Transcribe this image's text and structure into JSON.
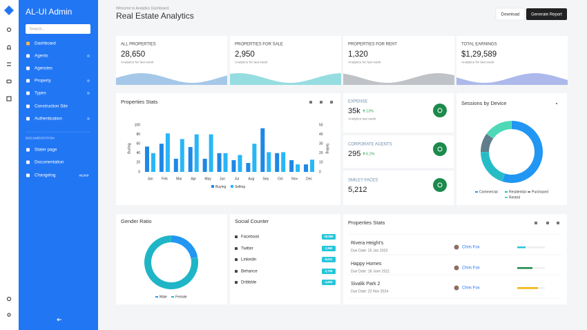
{
  "sidebar": {
    "brand": "AL-UI Admin",
    "search_placeholder": "Search...",
    "menu": [
      "Dashboard",
      "Agents",
      "Agencies",
      "Property",
      "Types",
      "Construction Site",
      "Authentication"
    ],
    "section": "DOCUMENTATION",
    "docs": [
      "Stater page",
      "Documentation",
      "Changelog"
    ],
    "version": "v1.0.0"
  },
  "header": {
    "welcome": "Welcome to Analytics Dashboard.",
    "title": "Real Estate Analytics",
    "buttons": [
      "Download",
      "Generate Report"
    ]
  },
  "stats": [
    {
      "label": "ALL PROPERTIES",
      "value": "28,650",
      "note": "Analytics for last week"
    },
    {
      "label": "PROPERTIES FOR SALE",
      "value": "2,950",
      "note": "Analytics for last week"
    },
    {
      "label": "PROPERTIES FOR RENT",
      "value": "1,320",
      "note": "Analytics for last week"
    },
    {
      "label": "TOTAL EARNINGS",
      "value": "$1,29,589",
      "note": "Analytics for last week"
    }
  ],
  "mini_cards": [
    {
      "label": "EXPENSE",
      "value": "35k",
      "change": "13%",
      "note": "Analytics last week"
    },
    {
      "label": "CORPORATE AGENTS",
      "value": "295",
      "change": "6.2%"
    },
    {
      "label": "SMILEY FACES",
      "value": "5,212"
    }
  ],
  "social": {
    "title": "Social Counter",
    "items": [
      {
        "name": "Facebook",
        "count": "29,585"
      },
      {
        "name": "Twitter",
        "count": "2,360"
      },
      {
        "name": "Linkedin",
        "count": "8,021"
      },
      {
        "name": "Behance",
        "count": "1,725"
      },
      {
        "name": "Dribbble",
        "count": "4,806"
      }
    ]
  },
  "property_list": {
    "title": "Properties Stats",
    "rows": [
      {
        "name": "Rivera Height's",
        "due": "Due Date: 25 Jan 2023",
        "agent": "Chris Fox",
        "progress": 30,
        "color": "#26c6da"
      },
      {
        "name": "Happy Homes",
        "due": "Due Date: 18 June 2021",
        "agent": "Chris Fox",
        "progress": 55,
        "color": "#1b8a4c"
      },
      {
        "name": "Sivalik Park 2",
        "due": "Due Date: 22 Nov 2024",
        "agent": "Chris Fox",
        "progress": 75,
        "color": "#f4b400"
      }
    ]
  },
  "chart_data": [
    {
      "type": "bar",
      "title": "Properties Stats",
      "y_label": "Buying",
      "y2_label": "Selling",
      "categories": [
        "Jan",
        "Feb",
        "Mar",
        "Apr",
        "May",
        "Jun",
        "Jul",
        "Aug",
        "Sep",
        "Oct",
        "Nov",
        "Dec"
      ],
      "series": [
        {
          "name": "Buying",
          "color": "#1e88e5",
          "values": [
            54,
            60,
            28,
            53,
            28,
            40,
            25,
            19,
            93,
            40,
            25,
            16
          ]
        },
        {
          "name": "Selling",
          "color": "#29b6f6",
          "axis": "y2",
          "values": [
            20,
            41,
            35,
            40,
            40,
            20,
            18,
            30,
            21,
            21,
            8,
            13
          ]
        }
      ],
      "ylim": [
        0,
        100
      ],
      "yticks": [
        0,
        20,
        40,
        60,
        80,
        100
      ],
      "y2lim": [
        0,
        50
      ],
      "y2ticks": [
        0,
        10,
        20,
        30,
        40,
        50
      ],
      "grid": false
    },
    {
      "type": "donut",
      "title": "Sessions by Device",
      "categories": [
        "Commercial",
        "Residential",
        "Purchased",
        "Rented"
      ],
      "values": [
        55,
        20,
        10,
        15
      ],
      "colors": [
        "#2196f3",
        "#26bcc6",
        "#607d8b",
        "#4dd9b8"
      ]
    },
    {
      "type": "donut",
      "title": "Gender Ratio",
      "categories": [
        "Male",
        "Female"
      ],
      "values": [
        22,
        78
      ],
      "colors": [
        "#2196f3",
        "#1fb5c7"
      ]
    }
  ]
}
